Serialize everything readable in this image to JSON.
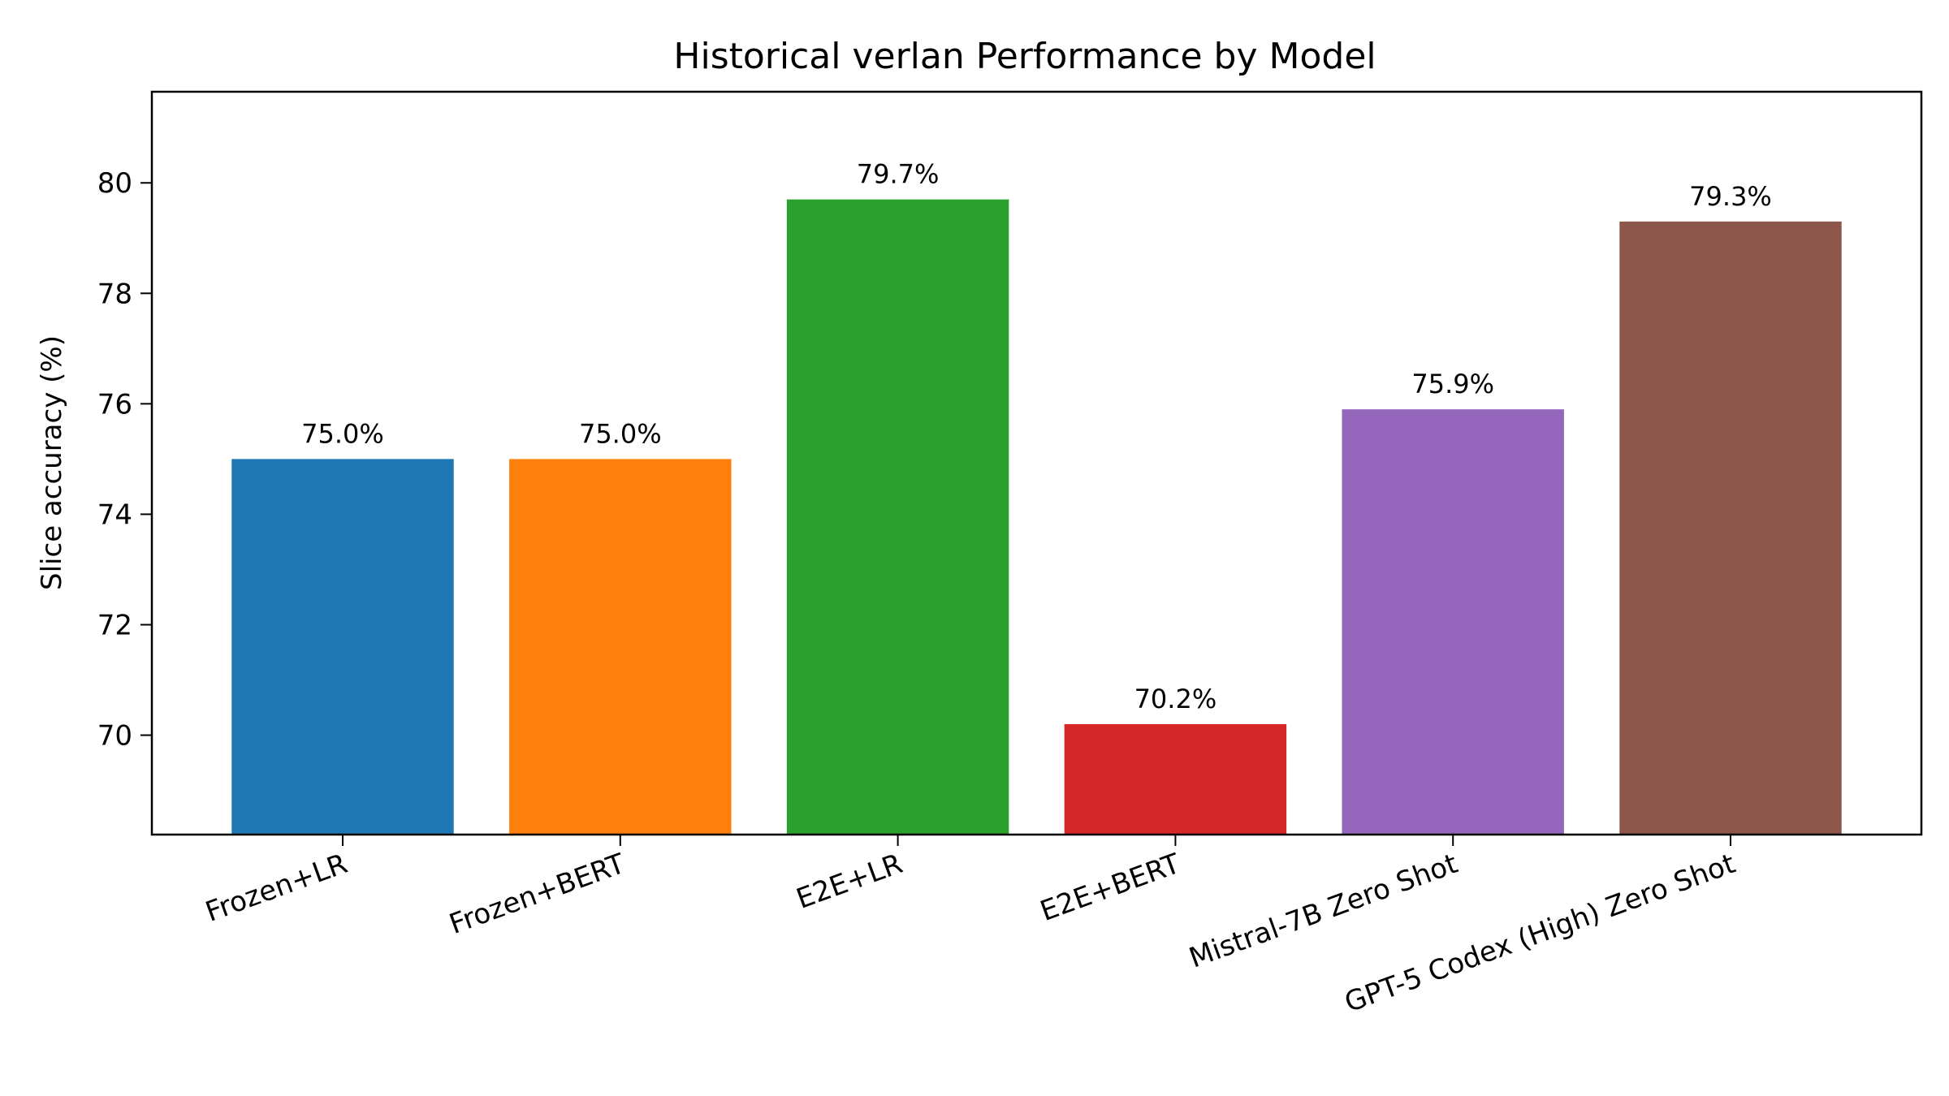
{
  "chart_data": {
    "type": "bar",
    "title": "Historical verlan Performance by Model",
    "xlabel": "",
    "ylabel": "Slice accuracy (%)",
    "categories": [
      "Frozen+LR",
      "Frozen+BERT",
      "E2E+LR",
      "E2E+BERT",
      "Mistral-7B Zero Shot",
      "GPT-5 Codex (High) Zero Shot"
    ],
    "values": [
      75.0,
      75.0,
      79.7,
      70.2,
      75.9,
      79.3
    ],
    "value_labels": [
      "75.0%",
      "75.0%",
      "79.7%",
      "70.2%",
      "75.9%",
      "79.3%"
    ],
    "colors": [
      "#1f77b4",
      "#ff7f0e",
      "#2ca02c",
      "#d62728",
      "#9467bd",
      "#8c564b"
    ],
    "ylim": [
      68.2,
      81.65
    ],
    "yticks": [
      70,
      72,
      74,
      76,
      78,
      80
    ],
    "ytick_labels": [
      "70",
      "72",
      "74",
      "76",
      "78",
      "80"
    ],
    "grid": false,
    "legend": "none"
  }
}
